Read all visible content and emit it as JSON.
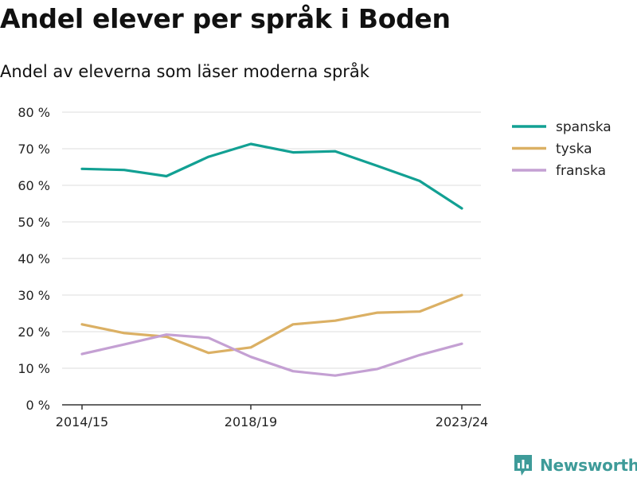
{
  "title": "Andel elever per språk i Boden",
  "subtitle": "Andel av eleverna som läser moderna språk",
  "brand": {
    "name": "Newsworthy",
    "icon": "newsworthy-logo-icon"
  },
  "chart_data": {
    "type": "line",
    "x": [
      "2014/15",
      "2015/16",
      "2016/17",
      "2017/18",
      "2018/19",
      "2019/20",
      "2020/21",
      "2021/22",
      "2022/23",
      "2023/24"
    ],
    "xticks": [
      "2014/15",
      "2018/19",
      "2023/24"
    ],
    "ylim": [
      0,
      80
    ],
    "yticks": [
      0,
      10,
      20,
      30,
      40,
      50,
      60,
      70,
      80
    ],
    "ytick_labels": [
      "0 %",
      "10 %",
      "20 %",
      "30 %",
      "40 %",
      "50 %",
      "60 %",
      "70 %",
      "80 %"
    ],
    "grid": true,
    "legend_position": "right",
    "series": [
      {
        "name": "spanska",
        "color": "#12a093",
        "values": [
          64.5,
          64.2,
          62.5,
          67.8,
          71.3,
          69.0,
          69.3,
          65.3,
          61.2,
          53.7
        ]
      },
      {
        "name": "tyska",
        "color": "#dbb064",
        "values": [
          22.0,
          19.6,
          18.6,
          14.2,
          15.7,
          22.0,
          23.0,
          25.2,
          25.5,
          30.0
        ]
      },
      {
        "name": "franska",
        "color": "#c4a0d3",
        "values": [
          13.9,
          16.5,
          19.2,
          18.3,
          13.1,
          9.2,
          8.0,
          9.8,
          13.6,
          16.7
        ]
      }
    ]
  }
}
